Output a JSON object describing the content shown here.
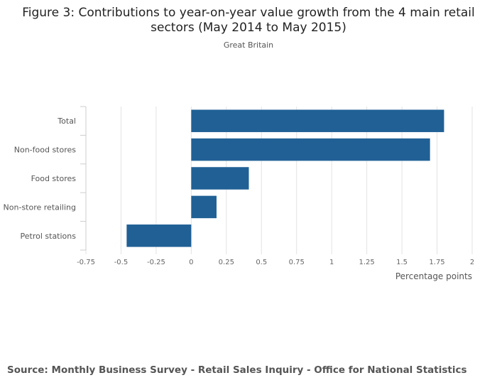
{
  "chart_data": {
    "type": "bar",
    "orientation": "horizontal",
    "title": "Figure 3: Contributions to year-on-year value growth from the 4 main retail sectors (May 2014 to May 2015)",
    "subtitle": "Great Britain",
    "categories": [
      "Total",
      "Non-food stores",
      "Food stores",
      "Non-store retailing",
      "Petrol stations"
    ],
    "values": [
      1.8,
      1.7,
      0.41,
      0.18,
      -0.46
    ],
    "xlabel": "Percentage points",
    "xlim": [
      -0.75,
      2
    ],
    "xticks": [
      -0.75,
      -0.5,
      -0.25,
      0,
      0.25,
      0.5,
      0.75,
      1,
      1.25,
      1.5,
      1.75,
      2
    ],
    "xtick_labels": [
      "-0.75",
      "-0.5",
      "-0.25",
      "0",
      "0.25",
      "0.5",
      "0.75",
      "1",
      "1.25",
      "1.5",
      "1.75",
      "2"
    ],
    "grid": true,
    "bar_color": "#206095"
  },
  "source": "Source: Monthly Business Survey - Retail Sales Inquiry - Office for National Statistics"
}
